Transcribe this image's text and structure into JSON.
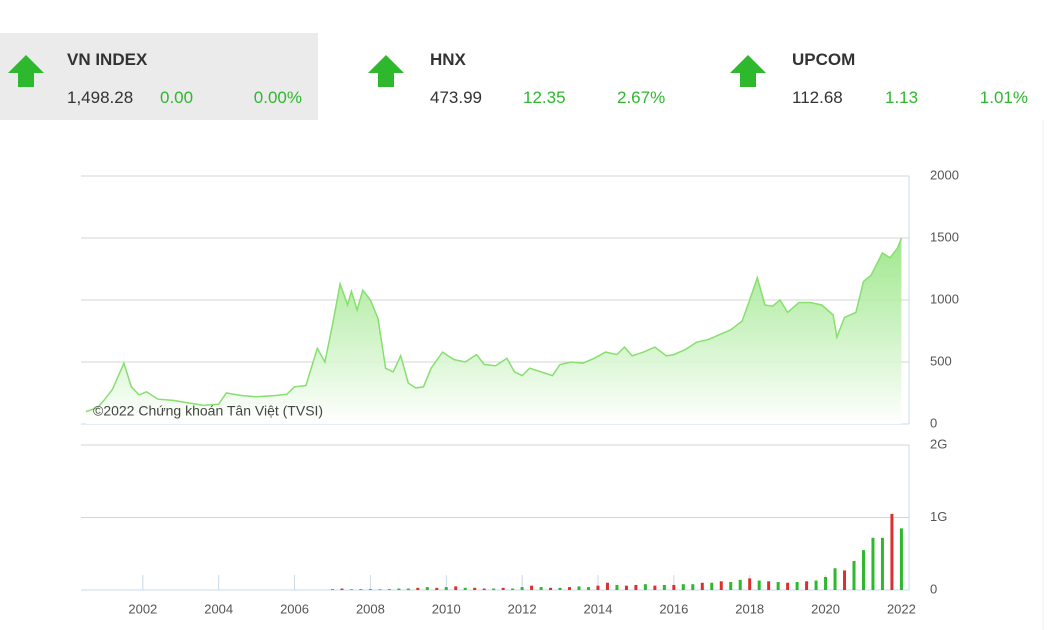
{
  "tickers": [
    {
      "name": "VN INDEX",
      "value": "1,498.28",
      "change": "0.00",
      "percent": "0.00%"
    },
    {
      "name": "HNX",
      "value": "473.99",
      "change": "12.35",
      "percent": "2.67%"
    },
    {
      "name": "UPCOM",
      "value": "112.68",
      "change": "1.13",
      "percent": "1.01%"
    }
  ],
  "chart_data": [
    {
      "type": "area",
      "annotation": "©2022 Chứng khoán Tân Việt (TVSI)",
      "color": "#86df6e",
      "xlim": [
        2000.37,
        2022.2
      ],
      "ylim": [
        0,
        2000
      ],
      "yticks": [
        0,
        500,
        1000,
        1500,
        2000
      ],
      "grid": true,
      "x": [
        2000.5,
        2000.8,
        2001.0,
        2001.2,
        2001.5,
        2001.7,
        2001.9,
        2002.1,
        2002.4,
        2002.8,
        2003.2,
        2003.6,
        2004.0,
        2004.2,
        2004.6,
        2005.0,
        2005.5,
        2005.8,
        2006.0,
        2006.3,
        2006.6,
        2006.8,
        2007.0,
        2007.2,
        2007.4,
        2007.5,
        2007.65,
        2007.8,
        2008.0,
        2008.2,
        2008.4,
        2008.6,
        2008.8,
        2009.0,
        2009.2,
        2009.4,
        2009.6,
        2009.9,
        2010.2,
        2010.5,
        2010.8,
        2011.0,
        2011.3,
        2011.6,
        2011.8,
        2012.0,
        2012.2,
        2012.5,
        2012.8,
        2013.0,
        2013.3,
        2013.6,
        2013.9,
        2014.2,
        2014.5,
        2014.7,
        2014.9,
        2015.2,
        2015.5,
        2015.8,
        2016.0,
        2016.3,
        2016.6,
        2016.9,
        2017.2,
        2017.5,
        2017.8,
        2018.0,
        2018.2,
        2018.4,
        2018.6,
        2018.8,
        2019.0,
        2019.3,
        2019.6,
        2019.9,
        2020.2,
        2020.3,
        2020.5,
        2020.8,
        2021.0,
        2021.2,
        2021.5,
        2021.7,
        2021.9,
        2022.0
      ],
      "values": [
        100,
        130,
        200,
        280,
        490,
        300,
        235,
        260,
        200,
        190,
        170,
        150,
        160,
        250,
        230,
        220,
        230,
        240,
        300,
        310,
        610,
        500,
        800,
        1130,
        960,
        1070,
        920,
        1080,
        1000,
        850,
        450,
        420,
        550,
        330,
        290,
        300,
        450,
        580,
        520,
        500,
        560,
        480,
        470,
        530,
        420,
        390,
        450,
        420,
        390,
        480,
        500,
        490,
        530,
        580,
        560,
        620,
        550,
        580,
        620,
        550,
        560,
        600,
        660,
        680,
        720,
        760,
        830,
        1000,
        1180,
        960,
        950,
        1000,
        900,
        980,
        980,
        960,
        880,
        700,
        860,
        900,
        1150,
        1200,
        1380,
        1340,
        1420,
        1498
      ]
    },
    {
      "type": "bar",
      "xlim": [
        2000.37,
        2022.2
      ],
      "xticks": [
        2002,
        2004,
        2006,
        2008,
        2010,
        2012,
        2014,
        2016,
        2018,
        2020,
        2022
      ],
      "ylim": [
        0,
        2
      ],
      "yticks": [
        0,
        {
          "value": 1,
          "label": "1G"
        },
        {
          "value": 2,
          "label": "2G"
        }
      ],
      "grid": true,
      "x": [
        2007,
        2007.25,
        2007.5,
        2007.75,
        2008,
        2008.25,
        2008.5,
        2008.75,
        2009,
        2009.25,
        2009.5,
        2009.75,
        2010,
        2010.25,
        2010.5,
        2010.75,
        2011,
        2011.25,
        2011.5,
        2011.75,
        2012,
        2012.25,
        2012.5,
        2012.75,
        2013,
        2013.25,
        2013.5,
        2013.75,
        2014,
        2014.25,
        2014.5,
        2014.75,
        2015,
        2015.25,
        2015.5,
        2015.75,
        2016,
        2016.25,
        2016.5,
        2016.75,
        2017,
        2017.25,
        2017.5,
        2017.75,
        2018,
        2018.25,
        2018.5,
        2018.75,
        2019,
        2019.25,
        2019.5,
        2019.75,
        2020,
        2020.25,
        2020.5,
        2020.75,
        2021,
        2021.25,
        2021.5,
        2021.75,
        2022
      ],
      "values": [
        0.01,
        0.02,
        0.01,
        0.01,
        0.01,
        0.01,
        0.01,
        0.02,
        0.02,
        0.03,
        0.04,
        0.03,
        0.04,
        0.05,
        0.03,
        0.03,
        0.02,
        0.02,
        0.03,
        0.02,
        0.04,
        0.06,
        0.04,
        0.03,
        0.03,
        0.04,
        0.05,
        0.04,
        0.06,
        0.1,
        0.07,
        0.06,
        0.07,
        0.08,
        0.06,
        0.07,
        0.07,
        0.08,
        0.08,
        0.1,
        0.1,
        0.12,
        0.11,
        0.14,
        0.16,
        0.13,
        0.12,
        0.11,
        0.1,
        0.11,
        0.12,
        0.13,
        0.18,
        0.3,
        0.27,
        0.4,
        0.55,
        0.72,
        0.72,
        1.05,
        0.85
      ],
      "colors": [
        "#d93030",
        "#d93030",
        "#2db82d",
        "#d93030",
        "#d93030",
        "#2db82d",
        "#d93030",
        "#2db82d",
        "#2db82d",
        "#d93030",
        "#2db82d",
        "#d93030",
        "#2db82d",
        "#d93030",
        "#2db82d",
        "#d93030",
        "#d93030",
        "#2db82d",
        "#d93030",
        "#2db82d",
        "#2db82d",
        "#d93030",
        "#2db82d",
        "#d93030",
        "#2db82d",
        "#d93030",
        "#2db82d",
        "#2db82d",
        "#d93030",
        "#d93030",
        "#2db82d",
        "#d93030",
        "#d93030",
        "#2db82d",
        "#d93030",
        "#2db82d",
        "#d93030",
        "#2db82d",
        "#2db82d",
        "#d93030",
        "#2db82d",
        "#d93030",
        "#2db82d",
        "#2db82d",
        "#d93030",
        "#2db82d",
        "#d93030",
        "#2db82d",
        "#d93030",
        "#2db82d",
        "#d93030",
        "#2db82d",
        "#2db82d",
        "#2db82d",
        "#d93030",
        "#2db82d",
        "#2db82d",
        "#2db82d",
        "#2db82d",
        "#d93030",
        "#2db82d"
      ]
    }
  ]
}
